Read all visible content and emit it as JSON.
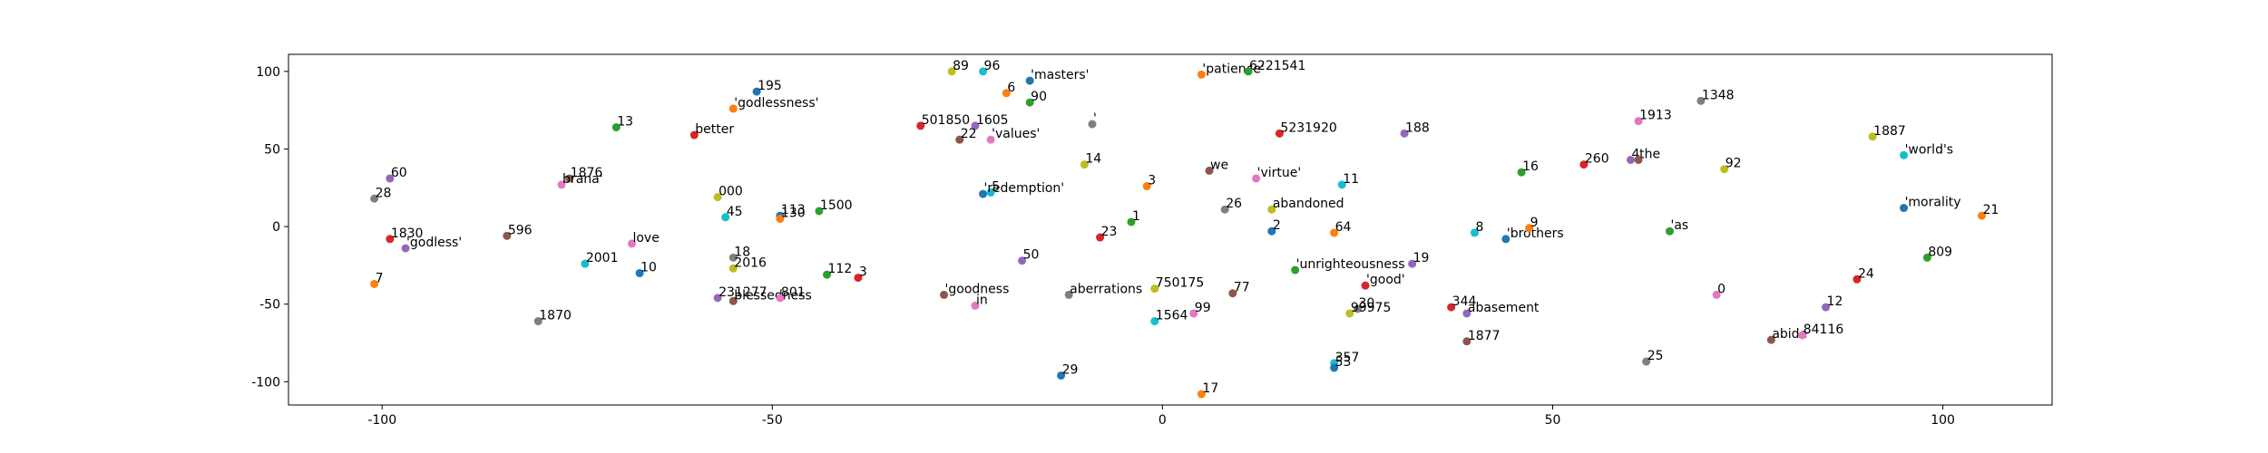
{
  "chart_data": {
    "type": "scatter",
    "title": "",
    "xlabel": "",
    "ylabel": "",
    "xlim": [
      -112,
      114
    ],
    "ylim": [
      -115,
      111
    ],
    "x_ticks": [
      -100,
      -50,
      0,
      50,
      100
    ],
    "y_ticks": [
      -100,
      -50,
      0,
      50,
      100
    ],
    "grid": false,
    "legend": "none",
    "point_colors": [
      "#1f77b4",
      "#ff7f0e",
      "#2ca02c",
      "#d62728",
      "#9467bd",
      "#8c564b",
      "#e377c2",
      "#7f7f7f",
      "#bcbd22",
      "#17becf"
    ],
    "points": [
      {
        "label": "195",
        "x": -52,
        "y": 87
      },
      {
        "label": "'godlessness'",
        "x": -55,
        "y": 76
      },
      {
        "label": "13",
        "x": -70,
        "y": 64
      },
      {
        "label": "better",
        "x": -60,
        "y": 59
      },
      {
        "label": "60",
        "x": -99,
        "y": 31
      },
      {
        "label": "1876",
        "x": -76,
        "y": 31
      },
      {
        "label": "brana'",
        "x": -77,
        "y": 27
      },
      {
        "label": "28",
        "x": -101,
        "y": 18
      },
      {
        "label": "000",
        "x": -57,
        "y": 19
      },
      {
        "label": "45",
        "x": -56,
        "y": 6
      },
      {
        "label": "113",
        "x": -49,
        "y": 7
      },
      {
        "label": "130",
        "x": -49,
        "y": 5
      },
      {
        "label": "1500",
        "x": -44,
        "y": 10
      },
      {
        "label": "1830",
        "x": -99,
        "y": -8
      },
      {
        "label": "'godless'",
        "x": -97,
        "y": -14
      },
      {
        "label": "596",
        "x": -84,
        "y": -6
      },
      {
        "label": "love",
        "x": -68,
        "y": -11
      },
      {
        "label": "18",
        "x": -55,
        "y": -20
      },
      {
        "label": "2016",
        "x": -55,
        "y": -27
      },
      {
        "label": "2001",
        "x": -74,
        "y": -24
      },
      {
        "label": "10",
        "x": -67,
        "y": -30
      },
      {
        "label": "7",
        "x": -101,
        "y": -37
      },
      {
        "label": "112",
        "x": -43,
        "y": -31
      },
      {
        "label": "3",
        "x": -39,
        "y": -33
      },
      {
        "label": "231277",
        "x": -57,
        "y": -46
      },
      {
        "label": "blessedness",
        "x": -55,
        "y": -48
      },
      {
        "label": "801",
        "x": -49,
        "y": -46
      },
      {
        "label": "1870",
        "x": -80,
        "y": -61
      },
      {
        "label": "89",
        "x": -27,
        "y": 100
      },
      {
        "label": "96",
        "x": -23,
        "y": 100
      },
      {
        "label": "'masters'",
        "x": -17,
        "y": 94
      },
      {
        "label": "6",
        "x": -20,
        "y": 86
      },
      {
        "label": "90",
        "x": -17,
        "y": 80
      },
      {
        "label": "501850",
        "x": -31,
        "y": 65
      },
      {
        "label": "1605",
        "x": -24,
        "y": 65
      },
      {
        "label": "22",
        "x": -26,
        "y": 56
      },
      {
        "label": "'values'",
        "x": -22,
        "y": 56
      },
      {
        "label": "'",
        "x": -9,
        "y": 66
      },
      {
        "label": "14",
        "x": -10,
        "y": 40
      },
      {
        "label": "5",
        "x": -22,
        "y": 22
      },
      {
        "label": "'redemption'",
        "x": -23,
        "y": 21
      },
      {
        "label": "3",
        "x": -2,
        "y": 26
      },
      {
        "label": "1",
        "x": -4,
        "y": 3
      },
      {
        "label": "23",
        "x": -8,
        "y": -7
      },
      {
        "label": "50",
        "x": -18,
        "y": -22
      },
      {
        "label": "'goodness",
        "x": -28,
        "y": -44
      },
      {
        "label": "in",
        "x": -24,
        "y": -51
      },
      {
        "label": "aberrations",
        "x": -12,
        "y": -44
      },
      {
        "label": "750175",
        "x": -1,
        "y": -40
      },
      {
        "label": "1564",
        "x": -1,
        "y": -61
      },
      {
        "label": "29",
        "x": -13,
        "y": -96
      },
      {
        "label": "'patience'",
        "x": 5,
        "y": 98
      },
      {
        "label": "6221541",
        "x": 11,
        "y": 100
      },
      {
        "label": "5231920",
        "x": 15,
        "y": 60
      },
      {
        "label": "188",
        "x": 31,
        "y": 60
      },
      {
        "label": "we",
        "x": 6,
        "y": 36
      },
      {
        "label": "'virtue'",
        "x": 12,
        "y": 31
      },
      {
        "label": "26",
        "x": 8,
        "y": 11
      },
      {
        "label": "abandoned",
        "x": 14,
        "y": 11
      },
      {
        "label": "11",
        "x": 23,
        "y": 27
      },
      {
        "label": "2",
        "x": 14,
        "y": -3
      },
      {
        "label": "64",
        "x": 22,
        "y": -4
      },
      {
        "label": "'unrighteousness",
        "x": 17,
        "y": -28
      },
      {
        "label": "'good'",
        "x": 26,
        "y": -38
      },
      {
        "label": "19",
        "x": 32,
        "y": -24
      },
      {
        "label": "77",
        "x": 9,
        "y": -43
      },
      {
        "label": "99",
        "x": 4,
        "y": -56
      },
      {
        "label": "30",
        "x": 25,
        "y": -53
      },
      {
        "label": "99975",
        "x": 24,
        "y": -56
      },
      {
        "label": "357",
        "x": 22,
        "y": -88
      },
      {
        "label": "53",
        "x": 22,
        "y": -91
      },
      {
        "label": "17",
        "x": 5,
        "y": -108
      },
      {
        "label": "16",
        "x": 46,
        "y": 35
      },
      {
        "label": "260",
        "x": 54,
        "y": 40
      },
      {
        "label": "4",
        "x": 60,
        "y": 43
      },
      {
        "label": "the",
        "x": 61,
        "y": 43
      },
      {
        "label": "1913",
        "x": 61,
        "y": 68
      },
      {
        "label": "1348",
        "x": 69,
        "y": 81
      },
      {
        "label": "92",
        "x": 72,
        "y": 37
      },
      {
        "label": "8",
        "x": 40,
        "y": -4
      },
      {
        "label": "'brothers",
        "x": 44,
        "y": -8
      },
      {
        "label": "9",
        "x": 47,
        "y": -1
      },
      {
        "label": "'as",
        "x": 65,
        "y": -3
      },
      {
        "label": "344",
        "x": 37,
        "y": -52
      },
      {
        "label": "abasement",
        "x": 39,
        "y": -56
      },
      {
        "label": "1877",
        "x": 39,
        "y": -74
      },
      {
        "label": "0",
        "x": 71,
        "y": -44
      },
      {
        "label": "25",
        "x": 62,
        "y": -87
      },
      {
        "label": "1887",
        "x": 91,
        "y": 58
      },
      {
        "label": "'world's",
        "x": 95,
        "y": 46
      },
      {
        "label": "'morality",
        "x": 95,
        "y": 12
      },
      {
        "label": "21",
        "x": 105,
        "y": 7
      },
      {
        "label": "809",
        "x": 98,
        "y": -20
      },
      {
        "label": "24",
        "x": 89,
        "y": -34
      },
      {
        "label": "12",
        "x": 85,
        "y": -52
      },
      {
        "label": "abide",
        "x": 78,
        "y": -73
      },
      {
        "label": "84116",
        "x": 82,
        "y": -70
      }
    ]
  }
}
